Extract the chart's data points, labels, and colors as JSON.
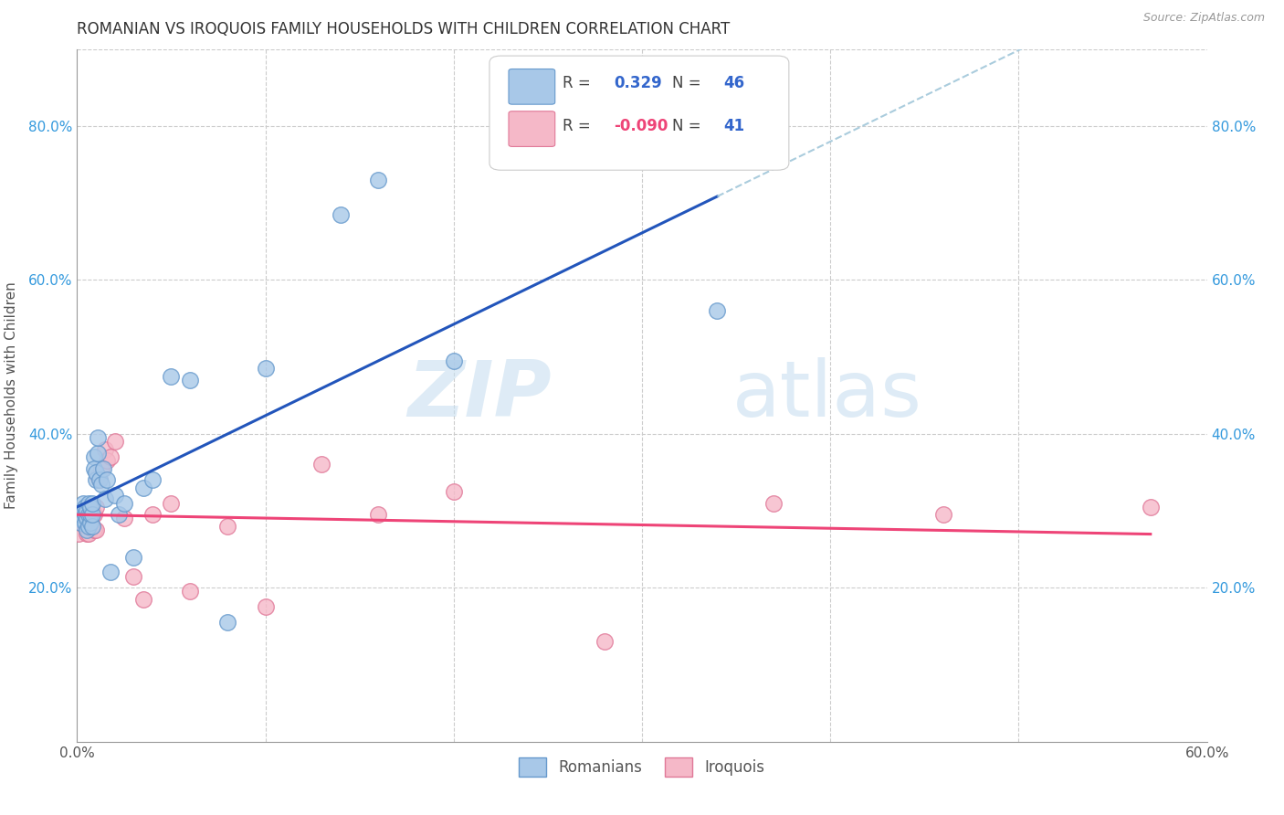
{
  "title": "ROMANIAN VS IROQUOIS FAMILY HOUSEHOLDS WITH CHILDREN CORRELATION CHART",
  "source": "Source: ZipAtlas.com",
  "ylabel": "Family Households with Children",
  "xlim": [
    0.0,
    0.6
  ],
  "ylim": [
    0.0,
    0.9
  ],
  "xtick_values": [
    0.0,
    0.6
  ],
  "xtick_labels": [
    "0.0%",
    "60.0%"
  ],
  "ytick_values": [
    0.2,
    0.4,
    0.6,
    0.8
  ],
  "ytick_labels": [
    "20.0%",
    "40.0%",
    "60.0%",
    "80.0%"
  ],
  "romanians_color": "#A8C8E8",
  "iroquois_color": "#F5B8C8",
  "romanians_edge": "#6699CC",
  "iroquois_edge": "#E07898",
  "trend_romanian_color": "#2255BB",
  "trend_iroquois_color": "#EE4477",
  "trend_ext_color": "#AACCDD",
  "legend_R_romanian": "0.329",
  "legend_N_romanian": "46",
  "legend_R_iroquois": "-0.090",
  "legend_N_iroquois": "41",
  "watermark_zip": "ZIP",
  "watermark_atlas": "atlas",
  "romanians_x": [
    0.001,
    0.002,
    0.002,
    0.003,
    0.003,
    0.004,
    0.004,
    0.004,
    0.005,
    0.005,
    0.005,
    0.006,
    0.006,
    0.006,
    0.007,
    0.007,
    0.007,
    0.008,
    0.008,
    0.008,
    0.009,
    0.009,
    0.01,
    0.01,
    0.011,
    0.011,
    0.012,
    0.013,
    0.014,
    0.015,
    0.016,
    0.018,
    0.02,
    0.022,
    0.025,
    0.03,
    0.035,
    0.04,
    0.05,
    0.06,
    0.08,
    0.1,
    0.14,
    0.16,
    0.2,
    0.34
  ],
  "romanians_y": [
    0.29,
    0.285,
    0.295,
    0.31,
    0.3,
    0.285,
    0.295,
    0.305,
    0.275,
    0.29,
    0.3,
    0.28,
    0.295,
    0.31,
    0.285,
    0.295,
    0.305,
    0.28,
    0.295,
    0.31,
    0.37,
    0.355,
    0.34,
    0.35,
    0.375,
    0.395,
    0.34,
    0.335,
    0.355,
    0.315,
    0.34,
    0.22,
    0.32,
    0.295,
    0.31,
    0.24,
    0.33,
    0.34,
    0.475,
    0.47,
    0.155,
    0.485,
    0.685,
    0.73,
    0.495,
    0.56
  ],
  "iroquois_x": [
    0.001,
    0.002,
    0.003,
    0.004,
    0.004,
    0.005,
    0.005,
    0.005,
    0.006,
    0.006,
    0.007,
    0.007,
    0.007,
    0.008,
    0.008,
    0.009,
    0.009,
    0.01,
    0.01,
    0.011,
    0.012,
    0.013,
    0.015,
    0.016,
    0.018,
    0.02,
    0.025,
    0.03,
    0.035,
    0.04,
    0.05,
    0.06,
    0.08,
    0.1,
    0.13,
    0.16,
    0.2,
    0.28,
    0.37,
    0.46,
    0.57
  ],
  "iroquois_y": [
    0.27,
    0.285,
    0.295,
    0.28,
    0.3,
    0.27,
    0.28,
    0.295,
    0.27,
    0.295,
    0.285,
    0.295,
    0.305,
    0.28,
    0.3,
    0.275,
    0.295,
    0.275,
    0.305,
    0.345,
    0.34,
    0.355,
    0.38,
    0.365,
    0.37,
    0.39,
    0.29,
    0.215,
    0.185,
    0.295,
    0.31,
    0.195,
    0.28,
    0.175,
    0.36,
    0.295,
    0.325,
    0.13,
    0.31,
    0.295,
    0.305
  ]
}
